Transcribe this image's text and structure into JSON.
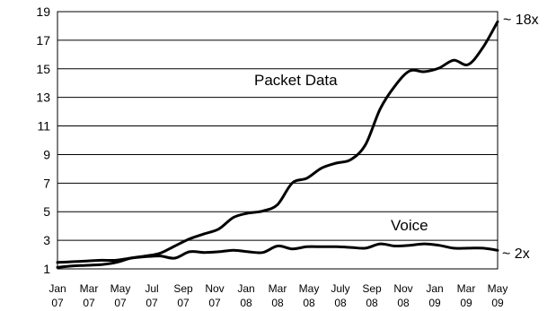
{
  "chart_data": {
    "type": "line",
    "title": "",
    "xlabel": "",
    "ylabel": "",
    "ylim": [
      1,
      19
    ],
    "y_ticks": [
      1,
      3,
      5,
      7,
      9,
      11,
      13,
      15,
      17,
      19
    ],
    "x_tick_labels": [
      {
        "month": "Jan",
        "year": "07"
      },
      {
        "month": "Mar",
        "year": "07"
      },
      {
        "month": "May",
        "year": "07"
      },
      {
        "month": "Jul",
        "year": "07"
      },
      {
        "month": "Sep",
        "year": "07"
      },
      {
        "month": "Nov",
        "year": "07"
      },
      {
        "month": "Jan",
        "year": "08"
      },
      {
        "month": "Mar",
        "year": "08"
      },
      {
        "month": "May",
        "year": "08"
      },
      {
        "month": "July",
        "year": "08"
      },
      {
        "month": "Sep",
        "year": "08"
      },
      {
        "month": "Nov",
        "year": "08"
      },
      {
        "month": "Jan",
        "year": "09"
      },
      {
        "month": "Mar",
        "year": "09"
      },
      {
        "month": "May",
        "year": "09"
      }
    ],
    "grid": "horizontal",
    "series": [
      {
        "name": "Packet Data",
        "end_label": "~ 18x",
        "color": "#000000",
        "values": [
          1.1,
          1.2,
          1.25,
          1.3,
          1.45,
          1.75,
          1.9,
          2.1,
          2.6,
          3.1,
          3.45,
          3.8,
          4.6,
          4.9,
          5.05,
          5.5,
          7.0,
          7.35,
          8.05,
          8.4,
          8.65,
          9.7,
          12.2,
          13.8,
          14.85,
          14.8,
          15.05,
          15.6,
          15.3,
          16.5,
          18.3
        ]
      },
      {
        "name": "Voice",
        "end_label": "~ 2x",
        "color": "#000000",
        "values": [
          1.45,
          1.5,
          1.55,
          1.6,
          1.6,
          1.75,
          1.85,
          1.9,
          1.75,
          2.2,
          2.15,
          2.2,
          2.3,
          2.2,
          2.15,
          2.6,
          2.4,
          2.55,
          2.55,
          2.55,
          2.5,
          2.45,
          2.75,
          2.6,
          2.65,
          2.75,
          2.65,
          2.45,
          2.45,
          2.45,
          2.3
        ]
      }
    ]
  }
}
